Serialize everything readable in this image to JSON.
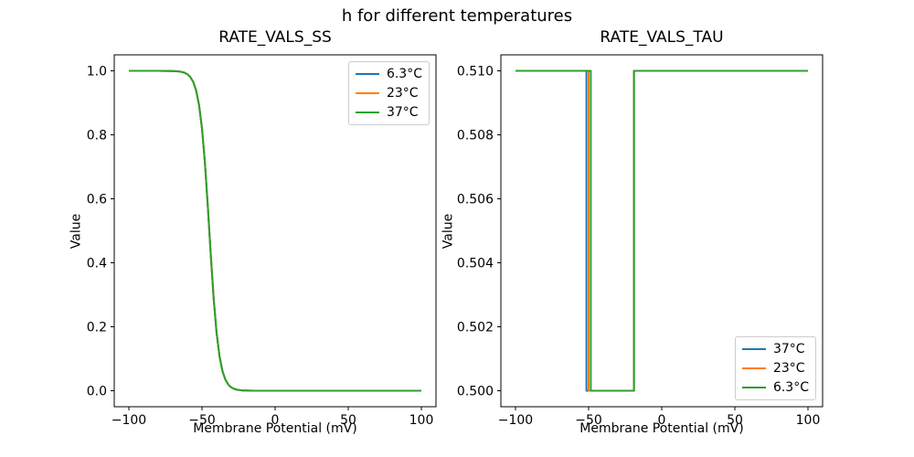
{
  "figure": {
    "suptitle": "h for different temperatures",
    "background": "#ffffff",
    "text_color": "#000000"
  },
  "chart_data": [
    {
      "type": "line",
      "title": "RATE_VALS_SS",
      "xlabel": "Membrane Potential (mV)",
      "ylabel": "Value",
      "xlim": [
        -110,
        110
      ],
      "ylim": [
        -0.05,
        1.05
      ],
      "grid": false,
      "xticks": [
        {
          "value": -100,
          "label": "−100"
        },
        {
          "value": -50,
          "label": "−50"
        },
        {
          "value": 0,
          "label": "0"
        },
        {
          "value": 50,
          "label": "50"
        },
        {
          "value": 100,
          "label": "100"
        }
      ],
      "yticks": [
        {
          "value": 0.0,
          "label": "0.0"
        },
        {
          "value": 0.2,
          "label": "0.2"
        },
        {
          "value": 0.4,
          "label": "0.4"
        },
        {
          "value": 0.6,
          "label": "0.6"
        },
        {
          "value": 0.8,
          "label": "0.8"
        },
        {
          "value": 1.0,
          "label": "1.0"
        }
      ],
      "legend": {
        "position": "upper right",
        "entries": [
          {
            "label": "6.3°C",
            "color": "#1f77b4"
          },
          {
            "label": "23°C",
            "color": "#ff7f0e"
          },
          {
            "label": "37°C",
            "color": "#2ca02c"
          }
        ]
      },
      "series": [
        {
          "name": "6.3°C",
          "color": "#1f77b4",
          "points": [
            [
              -100,
              1.0
            ],
            [
              -80,
              1.0
            ],
            [
              -70,
              0.9995
            ],
            [
              -65,
              0.9977
            ],
            [
              -62,
              0.9943
            ],
            [
              -60,
              0.9895
            ],
            [
              -58,
              0.981
            ],
            [
              -56,
              0.9655
            ],
            [
              -54,
              0.9386
            ],
            [
              -52,
              0.8929
            ],
            [
              -50,
              0.8198
            ],
            [
              -48,
              0.7128
            ],
            [
              -46,
              0.5752
            ],
            [
              -45,
              0.5
            ],
            [
              -44,
              0.4248
            ],
            [
              -42,
              0.2872
            ],
            [
              -40,
              0.1802
            ],
            [
              -38,
              0.1071
            ],
            [
              -36,
              0.0614
            ],
            [
              -34,
              0.0345
            ],
            [
              -32,
              0.0191
            ],
            [
              -30,
              0.0105
            ],
            [
              -28,
              0.0058
            ],
            [
              -26,
              0.0031
            ],
            [
              -24,
              0.0017
            ],
            [
              -22,
              0.0009
            ],
            [
              -20,
              0.0005
            ],
            [
              -15,
              0.0001
            ],
            [
              -10,
              0.0
            ],
            [
              0,
              0.0
            ],
            [
              50,
              0.0
            ],
            [
              100,
              0.0
            ]
          ]
        },
        {
          "name": "23°C",
          "color": "#ff7f0e",
          "points": [
            [
              -100,
              1.0
            ],
            [
              -80,
              1.0
            ],
            [
              -70,
              0.9995
            ],
            [
              -65,
              0.9977
            ],
            [
              -62,
              0.9943
            ],
            [
              -60,
              0.9895
            ],
            [
              -58,
              0.981
            ],
            [
              -56,
              0.9655
            ],
            [
              -54,
              0.9386
            ],
            [
              -52,
              0.8929
            ],
            [
              -50,
              0.8198
            ],
            [
              -48,
              0.7128
            ],
            [
              -46,
              0.5752
            ],
            [
              -45,
              0.5
            ],
            [
              -44,
              0.4248
            ],
            [
              -42,
              0.2872
            ],
            [
              -40,
              0.1802
            ],
            [
              -38,
              0.1071
            ],
            [
              -36,
              0.0614
            ],
            [
              -34,
              0.0345
            ],
            [
              -32,
              0.0191
            ],
            [
              -30,
              0.0105
            ],
            [
              -28,
              0.0058
            ],
            [
              -26,
              0.0031
            ],
            [
              -24,
              0.0017
            ],
            [
              -22,
              0.0009
            ],
            [
              -20,
              0.0005
            ],
            [
              -15,
              0.0001
            ],
            [
              -10,
              0.0
            ],
            [
              0,
              0.0
            ],
            [
              50,
              0.0
            ],
            [
              100,
              0.0
            ]
          ]
        },
        {
          "name": "37°C",
          "color": "#2ca02c",
          "points": [
            [
              -100,
              1.0
            ],
            [
              -80,
              1.0
            ],
            [
              -70,
              0.9995
            ],
            [
              -65,
              0.9977
            ],
            [
              -62,
              0.9943
            ],
            [
              -60,
              0.9895
            ],
            [
              -58,
              0.981
            ],
            [
              -56,
              0.9655
            ],
            [
              -54,
              0.9386
            ],
            [
              -52,
              0.8929
            ],
            [
              -50,
              0.8198
            ],
            [
              -48,
              0.7128
            ],
            [
              -46,
              0.5752
            ],
            [
              -45,
              0.5
            ],
            [
              -44,
              0.4248
            ],
            [
              -42,
              0.2872
            ],
            [
              -40,
              0.1802
            ],
            [
              -38,
              0.1071
            ],
            [
              -36,
              0.0614
            ],
            [
              -34,
              0.0345
            ],
            [
              -32,
              0.0191
            ],
            [
              -30,
              0.0105
            ],
            [
              -28,
              0.0058
            ],
            [
              -26,
              0.0031
            ],
            [
              -24,
              0.0017
            ],
            [
              -22,
              0.0009
            ],
            [
              -20,
              0.0005
            ],
            [
              -15,
              0.0001
            ],
            [
              -10,
              0.0
            ],
            [
              0,
              0.0
            ],
            [
              50,
              0.0
            ],
            [
              100,
              0.0
            ]
          ]
        }
      ]
    },
    {
      "type": "line",
      "title": "RATE_VALS_TAU",
      "xlabel": "Membrane Potential (mV)",
      "ylabel": "Value",
      "xlim": [
        -110,
        110
      ],
      "ylim": [
        0.4995,
        0.5105
      ],
      "grid": false,
      "xticks": [
        {
          "value": -100,
          "label": "−100"
        },
        {
          "value": -50,
          "label": "−50"
        },
        {
          "value": 0,
          "label": "0"
        },
        {
          "value": 50,
          "label": "50"
        },
        {
          "value": 100,
          "label": "100"
        }
      ],
      "yticks": [
        {
          "value": 0.5,
          "label": "0.500"
        },
        {
          "value": 0.502,
          "label": "0.502"
        },
        {
          "value": 0.504,
          "label": "0.504"
        },
        {
          "value": 0.506,
          "label": "0.506"
        },
        {
          "value": 0.508,
          "label": "0.508"
        },
        {
          "value": 0.51,
          "label": "0.510"
        }
      ],
      "legend": {
        "position": "lower right",
        "entries": [
          {
            "label": "37°C",
            "color": "#1f77b4"
          },
          {
            "label": "23°C",
            "color": "#ff7f0e"
          },
          {
            "label": "6.3°C",
            "color": "#2ca02c"
          }
        ]
      },
      "series": [
        {
          "name": "37°C",
          "color": "#1f77b4",
          "points": [
            [
              -100,
              0.51
            ],
            [
              -51.5,
              0.51
            ],
            [
              -51.5,
              0.5
            ],
            [
              -19,
              0.5
            ],
            [
              -19,
              0.51
            ],
            [
              100,
              0.51
            ]
          ]
        },
        {
          "name": "23°C",
          "color": "#ff7f0e",
          "points": [
            [
              -100,
              0.51
            ],
            [
              -50,
              0.51
            ],
            [
              -50,
              0.5
            ],
            [
              -19,
              0.5
            ],
            [
              -19,
              0.51
            ],
            [
              100,
              0.51
            ]
          ]
        },
        {
          "name": "6.3°C",
          "color": "#2ca02c",
          "points": [
            [
              -100,
              0.51
            ],
            [
              -48.5,
              0.51
            ],
            [
              -48.5,
              0.5
            ],
            [
              -19,
              0.5
            ],
            [
              -19,
              0.51
            ],
            [
              100,
              0.51
            ]
          ]
        }
      ]
    }
  ]
}
